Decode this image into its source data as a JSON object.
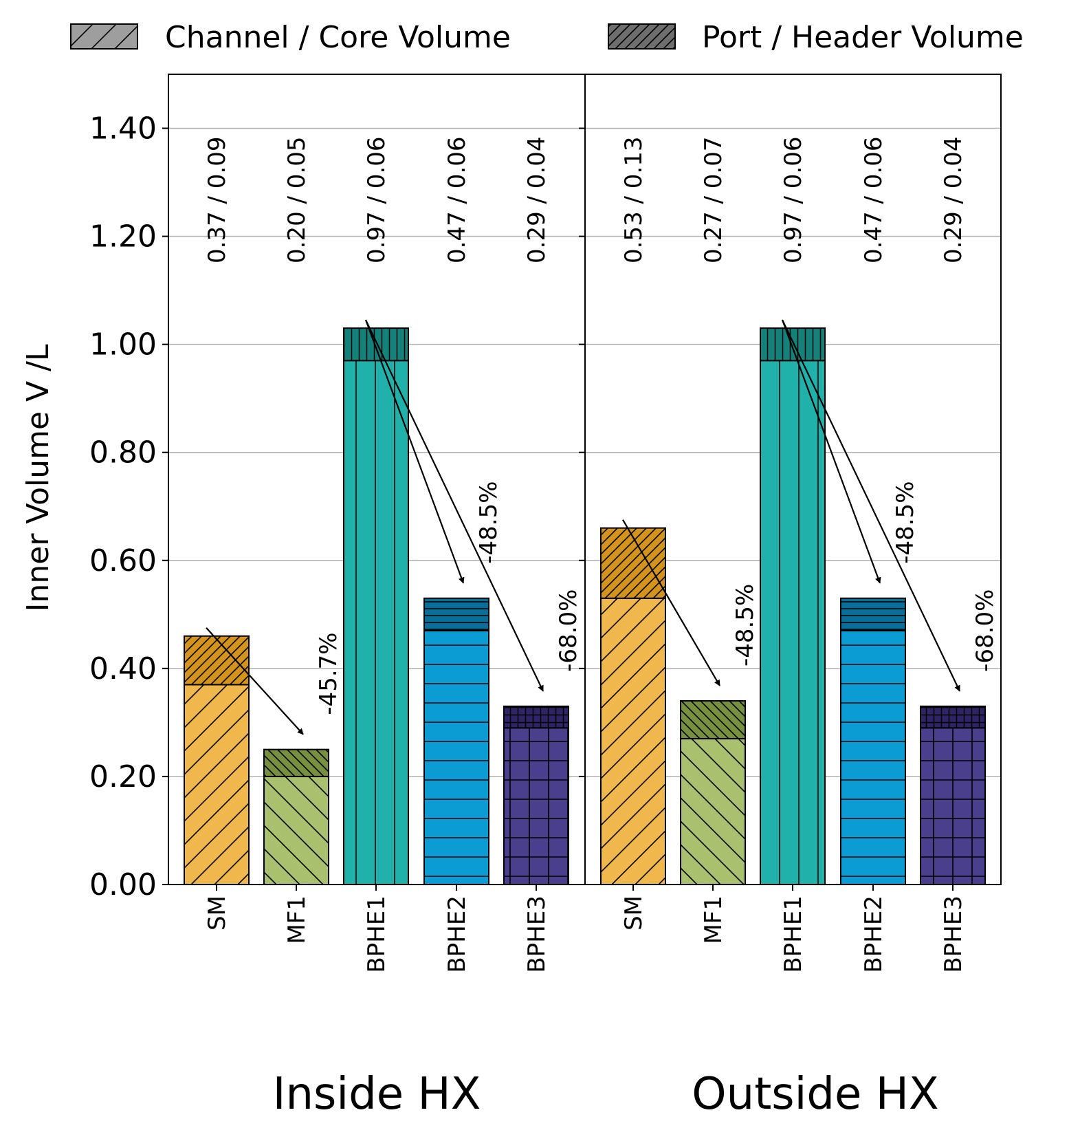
{
  "chart_data": {
    "type": "bar",
    "stacked": true,
    "ylabel": "Inner Volume V /L",
    "ylim": [
      0,
      1.5
    ],
    "yticks": [
      "0.00",
      "0.20",
      "0.40",
      "0.60",
      "0.80",
      "1.00",
      "1.20",
      "1.40"
    ],
    "grid": true,
    "legend": [
      {
        "label": "Channel / Core Volume",
        "hatch": "single"
      },
      {
        "label": "Port / Header Volume",
        "hatch": "dense"
      }
    ],
    "panels": [
      {
        "title": "Inside HX",
        "categories": [
          "SM",
          "MF1",
          "BPHE1",
          "BPHE2",
          "BPHE3"
        ],
        "series": [
          {
            "name": "Channel / Core Volume",
            "values": [
              0.37,
              0.2,
              0.97,
              0.47,
              0.29
            ]
          },
          {
            "name": "Port / Header Volume",
            "values": [
              0.09,
              0.05,
              0.06,
              0.06,
              0.04
            ]
          }
        ],
        "value_labels": [
          "0.37 / 0.09",
          "0.20 / 0.05",
          "0.97 / 0.06",
          "0.47 / 0.06",
          "0.29 / 0.04"
        ],
        "annotations": [
          {
            "text": "-45.7%",
            "from": "SM",
            "to": "MF1"
          },
          {
            "text": "-48.5%",
            "from": "BPHE1",
            "to": "BPHE2"
          },
          {
            "text": "-68.0%",
            "from": "BPHE1",
            "to": "BPHE3"
          }
        ]
      },
      {
        "title": "Outside HX",
        "categories": [
          "SM",
          "MF1",
          "BPHE1",
          "BPHE2",
          "BPHE3"
        ],
        "series": [
          {
            "name": "Channel / Core Volume",
            "values": [
              0.53,
              0.27,
              0.97,
              0.47,
              0.29
            ]
          },
          {
            "name": "Port / Header Volume",
            "values": [
              0.13,
              0.07,
              0.06,
              0.06,
              0.04
            ]
          }
        ],
        "value_labels": [
          "0.53 / 0.13",
          "0.27 / 0.07",
          "0.97 / 0.06",
          "0.47 / 0.06",
          "0.29 / 0.04"
        ],
        "annotations": [
          {
            "text": "-48.5%",
            "from": "SM",
            "to": "MF1"
          },
          {
            "text": "-48.5%",
            "from": "BPHE1",
            "to": "BPHE2"
          },
          {
            "text": "-68.0%",
            "from": "BPHE1",
            "to": "BPHE3"
          }
        ]
      }
    ]
  },
  "colors": {
    "SM": {
      "core": "#F0B84C",
      "header": "#D4931A",
      "pattern": "diag-fwd"
    },
    "MF1": {
      "core": "#A9C16E",
      "header": "#76903E",
      "pattern": "diag-back"
    },
    "BPHE1": {
      "core": "#20B2AA",
      "header": "#14817B",
      "pattern": "vert"
    },
    "BPHE2": {
      "core": "#0B9CD3",
      "header": "#0A6F98",
      "pattern": "horiz"
    },
    "BPHE3": {
      "core": "#4A3F8C",
      "header": "#2E2466",
      "pattern": "grid"
    },
    "legend_core": "#9E9E9E",
    "legend_header": "#6E6E6E",
    "grid": "#b0b0b0"
  }
}
